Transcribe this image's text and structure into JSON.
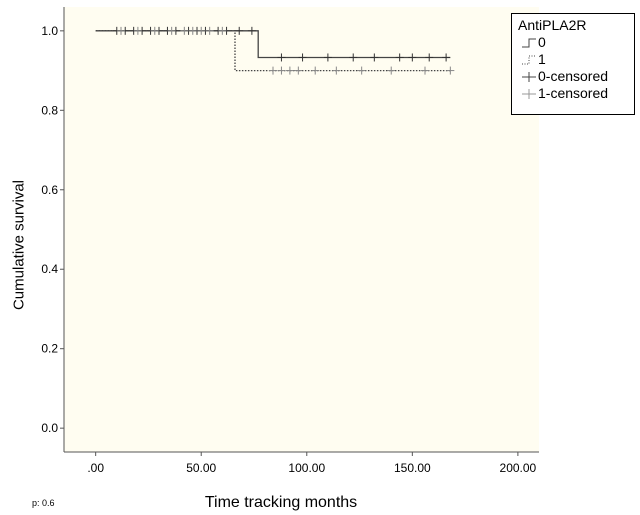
{
  "chart_data": {
    "type": "line",
    "subtype": "kaplan-meier",
    "title": "",
    "xlabel": "Time tracking months",
    "ylabel": "Cumulative survival",
    "xlim": [
      -15,
      210
    ],
    "ylim": [
      -0.06,
      1.06
    ],
    "x_ticks": [
      0,
      50,
      100,
      150,
      200
    ],
    "x_tick_labels": [
      ".00",
      "50.00",
      "100.00",
      "150.00",
      "200.00"
    ],
    "y_ticks": [
      0,
      0.2,
      0.4,
      0.6,
      0.8,
      1.0
    ],
    "y_tick_labels": [
      "0.0",
      "0.2",
      "0.4",
      "0.6",
      "0.8",
      "1.0"
    ],
    "grid": false,
    "plot_background": "#fffdf1",
    "legend": {
      "title": "AntiPLA2R",
      "placement": "right",
      "entries": [
        "0",
        "1",
        "0-censored",
        "1-censored"
      ]
    },
    "series": [
      {
        "name": "0",
        "style": "solid",
        "color": "#444444",
        "x": [
          0,
          77,
          77,
          168
        ],
        "y": [
          1.0,
          1.0,
          0.933,
          0.933
        ],
        "censored_x": [
          10,
          14,
          18,
          22,
          26,
          30,
          34,
          38,
          44,
          48,
          52,
          58,
          62,
          68,
          74,
          88,
          98,
          110,
          122,
          132,
          144,
          150,
          158,
          166
        ],
        "censored_y": [
          1.0,
          1.0,
          1.0,
          1.0,
          1.0,
          1.0,
          1.0,
          1.0,
          1.0,
          1.0,
          1.0,
          1.0,
          1.0,
          1.0,
          1.0,
          0.933,
          0.933,
          0.933,
          0.933,
          0.933,
          0.933,
          0.933,
          0.933,
          0.933
        ]
      },
      {
        "name": "1",
        "style": "dotted",
        "color": "#444444",
        "x": [
          0,
          66,
          66,
          168
        ],
        "y": [
          1.0,
          1.0,
          0.9,
          0.9
        ],
        "censored_x": [
          12,
          20,
          28,
          36,
          42,
          46,
          50,
          54,
          60,
          84,
          88,
          92,
          96,
          104,
          114,
          126,
          140,
          156,
          168
        ],
        "censored_y": [
          1.0,
          1.0,
          1.0,
          1.0,
          1.0,
          1.0,
          1.0,
          1.0,
          1.0,
          0.9,
          0.9,
          0.9,
          0.9,
          0.9,
          0.9,
          0.9,
          0.9,
          0.9,
          0.9
        ]
      }
    ],
    "annotations": [
      "p: 0.6"
    ]
  }
}
